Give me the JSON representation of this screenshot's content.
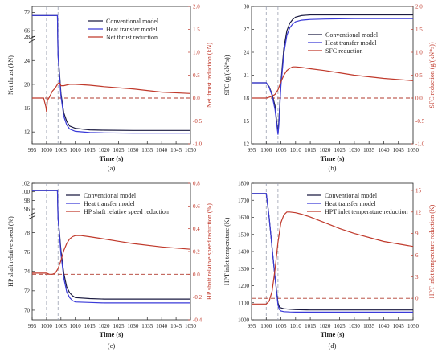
{
  "figure": {
    "background": "#ffffff"
  },
  "colors": {
    "conventional": "#1a1a40",
    "heat_transfer": "#3a3ad8",
    "reduction": "#c0392b",
    "vertical_line": "#9aa0b0",
    "zero_line": "#b03a2e",
    "axis": "#222222"
  },
  "chart_data": [
    {
      "type": "line",
      "caption": "(a)",
      "xlabel": "Time (s)",
      "ylabel": "Net thrust (kN)",
      "y2label": "Net thrust reduction (kN)",
      "xlim": [
        995,
        1050
      ],
      "xticks": [
        "995",
        "1000",
        "1005",
        "1010",
        "1015",
        "1020",
        "1025",
        "1030",
        "1035",
        "1040",
        "1045",
        "1050"
      ],
      "y_break": true,
      "y_segments": [
        {
          "range": [
            10,
            28
          ],
          "ticks": [
            "12",
            "16",
            "20",
            "24",
            "28"
          ]
        },
        {
          "range": [
            64,
            74
          ],
          "ticks": [
            "66",
            "72"
          ]
        }
      ],
      "y2lim": [
        -1.0,
        2.0
      ],
      "y2ticks": [
        "-1.0",
        "-0.5",
        "0.0",
        "0.5",
        "1.0",
        "1.5",
        "2.0"
      ],
      "vlines": [
        1000,
        1004
      ],
      "zero_line_y2": 0.0,
      "legend_position": "top-right",
      "series": [
        {
          "name": "Conventional model",
          "axis": "left",
          "color_key": "conventional",
          "x": [
            995,
            999.9,
            1000,
            1001,
            1002,
            1003,
            1003.8,
            1004,
            1004.5,
            1005,
            1006,
            1007,
            1008,
            1010,
            1015,
            1020,
            1030,
            1040,
            1050
          ],
          "y": [
            71,
            71,
            71,
            71,
            71,
            71,
            71,
            25,
            22,
            18.5,
            15.2,
            13.8,
            13.0,
            12.6,
            12.35,
            12.3,
            12.25,
            12.25,
            12.25
          ]
        },
        {
          "name": "Heat transfer model",
          "axis": "left",
          "color_key": "heat_transfer",
          "x": [
            995,
            1000,
            1001,
            1002,
            1003,
            1003.8,
            1004,
            1004.5,
            1005,
            1006,
            1007,
            1008,
            1010,
            1015,
            1020,
            1030,
            1040,
            1050
          ],
          "y": [
            71,
            71,
            71,
            71,
            71,
            71,
            25,
            21.5,
            18,
            14.6,
            13.2,
            12.5,
            12.1,
            11.9,
            11.85,
            11.8,
            11.8,
            11.8
          ]
        },
        {
          "name": "Net thrust reduction",
          "axis": "right",
          "color_key": "reduction",
          "x": [
            995,
            999,
            999.8,
            1000,
            1000.3,
            1001,
            1002,
            1003,
            1004,
            1004.6,
            1005,
            1006,
            1008,
            1010,
            1015,
            1020,
            1030,
            1040,
            1050
          ],
          "y": [
            0.0,
            0.0,
            -0.2,
            -0.3,
            -0.05,
            0.02,
            0.15,
            0.22,
            0.32,
            0.33,
            0.27,
            0.27,
            0.3,
            0.3,
            0.28,
            0.25,
            0.2,
            0.13,
            0.1
          ]
        }
      ]
    },
    {
      "type": "line",
      "caption": "(b)",
      "xlabel": "Time (s)",
      "ylabel": "SFC (g/(kN*s))",
      "y2label": "SFC reduction (g/(kN*s))",
      "xlim": [
        995,
        1050
      ],
      "xticks": [
        "995",
        "1000",
        "1005",
        "1010",
        "1015",
        "1020",
        "1025",
        "1030",
        "1035",
        "1040",
        "1045",
        "1050"
      ],
      "ylim": [
        12,
        30
      ],
      "yticks": [
        "12",
        "15",
        "18",
        "21",
        "24",
        "27",
        "30"
      ],
      "y2lim": [
        -1.0,
        2.0
      ],
      "y2ticks": [
        "-1.0",
        "-0.5",
        "0.0",
        "0.5",
        "1.0",
        "1.5",
        "2.0"
      ],
      "vlines": [
        1000,
        1004
      ],
      "zero_line_y2": 0.0,
      "legend_position": "right",
      "series": [
        {
          "name": "Conventional model",
          "axis": "left",
          "color_key": "conventional",
          "x": [
            995,
            999.8,
            1000,
            1001,
            1002,
            1003,
            1004,
            1004.3,
            1005,
            1006,
            1007,
            1008,
            1009,
            1010,
            1012,
            1015,
            1020,
            1030,
            1040,
            1050
          ],
          "y": [
            20,
            20,
            20,
            19.5,
            18.5,
            17,
            13.4,
            15,
            20,
            24.5,
            26.8,
            27.8,
            28.3,
            28.6,
            28.8,
            28.9,
            28.9,
            28.9,
            28.9,
            28.9
          ]
        },
        {
          "name": "Heat transfer model",
          "axis": "left",
          "color_key": "heat_transfer",
          "x": [
            995,
            999.8,
            1000,
            1001,
            1002,
            1003,
            1004,
            1004.3,
            1005,
            1006,
            1007,
            1008,
            1009,
            1010,
            1012,
            1015,
            1020,
            1030,
            1040,
            1050
          ],
          "y": [
            20,
            20,
            20,
            19.4,
            18.3,
            16.5,
            13.2,
            14.5,
            19.5,
            23.8,
            26.2,
            27.2,
            27.7,
            28.0,
            28.2,
            28.3,
            28.35,
            28.4,
            28.4,
            28.4
          ]
        },
        {
          "name": "SFC reduction",
          "axis": "right",
          "color_key": "reduction",
          "x": [
            995,
            1000,
            1001,
            1002,
            1003,
            1004,
            1005,
            1006,
            1007,
            1008,
            1009,
            1010,
            1012,
            1015,
            1020,
            1025,
            1030,
            1040,
            1050
          ],
          "y": [
            0.0,
            0.0,
            0.02,
            0.04,
            0.08,
            0.18,
            0.35,
            0.5,
            0.6,
            0.65,
            0.68,
            0.68,
            0.67,
            0.64,
            0.6,
            0.55,
            0.5,
            0.43,
            0.38
          ]
        }
      ]
    },
    {
      "type": "line",
      "caption": "(c)",
      "xlabel": "Time (s)",
      "ylabel": "HP shaft relative speed (%)",
      "y2label": "HP shaft relative speed reduction (%)",
      "xlim": [
        995,
        1050
      ],
      "xticks": [
        "995",
        "1000",
        "1005",
        "1010",
        "1015",
        "1020",
        "1025",
        "1030",
        "1035",
        "1040",
        "1045",
        "1050"
      ],
      "y_break": true,
      "y_segments": [
        {
          "range": [
            69,
            80
          ],
          "ticks": [
            "70",
            "72",
            "74",
            "76",
            "78"
          ]
        },
        {
          "range": [
            95,
            102
          ],
          "ticks": [
            "96",
            "98",
            "100",
            "102"
          ]
        }
      ],
      "y2lim": [
        -0.4,
        0.8
      ],
      "y2ticks": [
        "-0.4",
        "-0.2",
        "0.0",
        "0.2",
        "0.4",
        "0.6",
        "0.8"
      ],
      "vlines": [
        1000,
        1004
      ],
      "zero_line_y2": 0.0,
      "legend_position": "top-right",
      "series": [
        {
          "name": "Conventional model",
          "axis": "left",
          "color_key": "conventional",
          "x": [
            995,
            1000,
            1002,
            1003.8,
            1004,
            1004.5,
            1005,
            1006,
            1007,
            1008,
            1009,
            1010,
            1015,
            1020,
            1030,
            1040,
            1050
          ],
          "y": [
            100.3,
            100.3,
            100.3,
            100.3,
            79.5,
            78,
            76.2,
            73.8,
            72.4,
            71.8,
            71.5,
            71.3,
            71.2,
            71.15,
            71.15,
            71.15,
            71.15
          ]
        },
        {
          "name": "Heat transfer model",
          "axis": "left",
          "color_key": "heat_transfer",
          "x": [
            995,
            1000,
            1002,
            1003.8,
            1004,
            1004.5,
            1005,
            1006,
            1007,
            1008,
            1009,
            1010,
            1015,
            1020,
            1030,
            1040,
            1050
          ],
          "y": [
            100.3,
            100.3,
            100.3,
            100.3,
            79.5,
            77.8,
            75.8,
            73.3,
            71.9,
            71.3,
            71.0,
            70.85,
            70.8,
            70.75,
            70.75,
            70.75,
            70.75
          ]
        },
        {
          "name": "HP shaft relative speed reduction",
          "axis": "right",
          "color_key": "reduction",
          "x": [
            995,
            1000,
            1001,
            1002,
            1003,
            1004,
            1005,
            1006,
            1007,
            1008,
            1009,
            1010,
            1012,
            1015,
            1020,
            1025,
            1030,
            1040,
            1050
          ],
          "y": [
            0.01,
            0.01,
            0.0,
            0.0,
            0.01,
            0.05,
            0.12,
            0.21,
            0.27,
            0.31,
            0.33,
            0.34,
            0.34,
            0.33,
            0.31,
            0.29,
            0.27,
            0.24,
            0.22
          ]
        }
      ]
    },
    {
      "type": "line",
      "caption": "(d)",
      "xlabel": "Time (s)",
      "ylabel": "HPT inlet temperature (K)",
      "y2label": "HPT inlet temperature reduction (K)",
      "xlim": [
        995,
        1050
      ],
      "xticks": [
        "995",
        "1000",
        "1005",
        "1010",
        "1015",
        "1020",
        "1025",
        "1030",
        "1035",
        "1040",
        "1045",
        "1050"
      ],
      "ylim": [
        1000,
        1800
      ],
      "yticks": [
        "1000",
        "1100",
        "1200",
        "1300",
        "1400",
        "1500",
        "1600",
        "1700",
        "1800"
      ],
      "y2lim": [
        -3,
        16
      ],
      "y2ticks": [
        "0",
        "3",
        "6",
        "9",
        "12",
        "15"
      ],
      "vlines": [
        1000,
        1004
      ],
      "zero_line_y2": 0.0,
      "legend_position": "top-right",
      "series": [
        {
          "name": "Conventional model",
          "axis": "left",
          "color_key": "conventional",
          "x": [
            995,
            999.8,
            1000,
            1001,
            1002,
            1003,
            1004,
            1004.5,
            1005,
            1006,
            1008,
            1010,
            1015,
            1020,
            1030,
            1040,
            1050
          ],
          "y": [
            1740,
            1740,
            1740,
            1600,
            1420,
            1250,
            1100,
            1075,
            1070,
            1065,
            1062,
            1060,
            1058,
            1058,
            1058,
            1058,
            1058
          ]
        },
        {
          "name": "Heat transfer model",
          "axis": "left",
          "color_key": "heat_transfer",
          "x": [
            995,
            999.8,
            1000,
            1001,
            1002,
            1003,
            1004,
            1004.5,
            1005,
            1006,
            1008,
            1010,
            1015,
            1020,
            1030,
            1040,
            1050
          ],
          "y": [
            1740,
            1740,
            1740,
            1600,
            1420,
            1250,
            1085,
            1060,
            1052,
            1048,
            1046,
            1045,
            1045,
            1045,
            1045,
            1045,
            1045
          ]
        },
        {
          "name": "HPT inlet temperature reduction",
          "axis": "right",
          "color_key": "reduction",
          "x": [
            995,
            1000,
            1001,
            1002,
            1003,
            1004,
            1005,
            1006,
            1007,
            1008,
            1010,
            1012,
            1015,
            1020,
            1025,
            1030,
            1040,
            1050
          ],
          "y": [
            -0.8,
            -0.8,
            -0.4,
            1.0,
            4.0,
            7.8,
            10.5,
            11.6,
            12.0,
            12.0,
            11.9,
            11.7,
            11.3,
            10.5,
            9.7,
            9.0,
            7.9,
            7.2
          ]
        }
      ]
    }
  ]
}
